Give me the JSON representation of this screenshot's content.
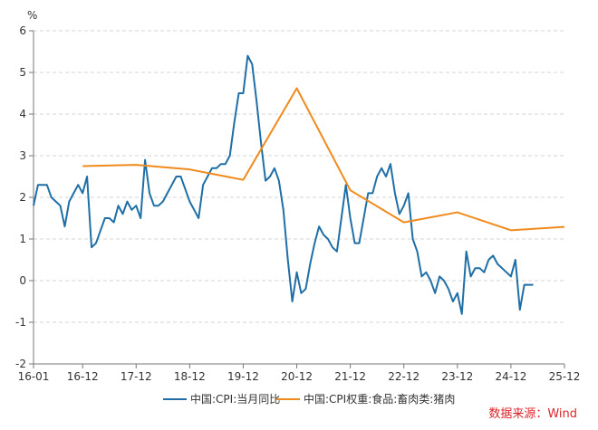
{
  "chart_data": {
    "type": "line",
    "unit": "%",
    "ylim": [
      -2,
      6
    ],
    "yticks": [
      "6",
      "5",
      "4",
      "3",
      "2",
      "1",
      "0",
      "-1",
      "-2"
    ],
    "xlim": [
      "2016-01",
      "2025-12"
    ],
    "xticks": [
      "16-01",
      "16-12",
      "17-12",
      "18-12",
      "19-12",
      "20-12",
      "21-12",
      "22-12",
      "23-12",
      "24-12",
      "25-12"
    ],
    "grid": true,
    "legend_position": "bottom",
    "source": "数据来源：Wind",
    "series": [
      {
        "name": "中国:CPI:当月同比",
        "color": "#1f6fa6",
        "points": [
          [
            "2016-01",
            1.8
          ],
          [
            "2016-02",
            2.3
          ],
          [
            "2016-03",
            2.3
          ],
          [
            "2016-04",
            2.3
          ],
          [
            "2016-05",
            2.0
          ],
          [
            "2016-06",
            1.9
          ],
          [
            "2016-07",
            1.8
          ],
          [
            "2016-08",
            1.3
          ],
          [
            "2016-09",
            1.9
          ],
          [
            "2016-10",
            2.1
          ],
          [
            "2016-11",
            2.3
          ],
          [
            "2016-12",
            2.1
          ],
          [
            "2017-01",
            2.5
          ],
          [
            "2017-02",
            0.8
          ],
          [
            "2017-03",
            0.9
          ],
          [
            "2017-04",
            1.2
          ],
          [
            "2017-05",
            1.5
          ],
          [
            "2017-06",
            1.5
          ],
          [
            "2017-07",
            1.4
          ],
          [
            "2017-08",
            1.8
          ],
          [
            "2017-09",
            1.6
          ],
          [
            "2017-10",
            1.9
          ],
          [
            "2017-11",
            1.7
          ],
          [
            "2017-12",
            1.8
          ],
          [
            "2018-01",
            1.5
          ],
          [
            "2018-02",
            2.9
          ],
          [
            "2018-03",
            2.1
          ],
          [
            "2018-04",
            1.8
          ],
          [
            "2018-05",
            1.8
          ],
          [
            "2018-06",
            1.9
          ],
          [
            "2018-07",
            2.1
          ],
          [
            "2018-08",
            2.3
          ],
          [
            "2018-09",
            2.5
          ],
          [
            "2018-10",
            2.5
          ],
          [
            "2018-11",
            2.2
          ],
          [
            "2018-12",
            1.9
          ],
          [
            "2019-01",
            1.7
          ],
          [
            "2019-02",
            1.5
          ],
          [
            "2019-03",
            2.3
          ],
          [
            "2019-04",
            2.5
          ],
          [
            "2019-05",
            2.7
          ],
          [
            "2019-06",
            2.7
          ],
          [
            "2019-07",
            2.8
          ],
          [
            "2019-08",
            2.8
          ],
          [
            "2019-09",
            3.0
          ],
          [
            "2019-10",
            3.8
          ],
          [
            "2019-11",
            4.5
          ],
          [
            "2019-12",
            4.5
          ],
          [
            "2020-01",
            5.4
          ],
          [
            "2020-02",
            5.2
          ],
          [
            "2020-03",
            4.3
          ],
          [
            "2020-04",
            3.3
          ],
          [
            "2020-05",
            2.4
          ],
          [
            "2020-06",
            2.5
          ],
          [
            "2020-07",
            2.7
          ],
          [
            "2020-08",
            2.4
          ],
          [
            "2020-09",
            1.7
          ],
          [
            "2020-10",
            0.5
          ],
          [
            "2020-11",
            -0.5
          ],
          [
            "2020-12",
            0.2
          ],
          [
            "2021-01",
            -0.3
          ],
          [
            "2021-02",
            -0.2
          ],
          [
            "2021-03",
            0.4
          ],
          [
            "2021-04",
            0.9
          ],
          [
            "2021-05",
            1.3
          ],
          [
            "2021-06",
            1.1
          ],
          [
            "2021-07",
            1.0
          ],
          [
            "2021-08",
            0.8
          ],
          [
            "2021-09",
            0.7
          ],
          [
            "2021-10",
            1.5
          ],
          [
            "2021-11",
            2.3
          ],
          [
            "2021-12",
            1.5
          ],
          [
            "2022-01",
            0.9
          ],
          [
            "2022-02",
            0.9
          ],
          [
            "2022-03",
            1.5
          ],
          [
            "2022-04",
            2.1
          ],
          [
            "2022-05",
            2.1
          ],
          [
            "2022-06",
            2.5
          ],
          [
            "2022-07",
            2.7
          ],
          [
            "2022-08",
            2.5
          ],
          [
            "2022-09",
            2.8
          ],
          [
            "2022-10",
            2.1
          ],
          [
            "2022-11",
            1.6
          ],
          [
            "2022-12",
            1.8
          ],
          [
            "2023-01",
            2.1
          ],
          [
            "2023-02",
            1.0
          ],
          [
            "2023-03",
            0.7
          ],
          [
            "2023-04",
            0.1
          ],
          [
            "2023-05",
            0.2
          ],
          [
            "2023-06",
            0.0
          ],
          [
            "2023-07",
            -0.3
          ],
          [
            "2023-08",
            0.1
          ],
          [
            "2023-09",
            0.0
          ],
          [
            "2023-10",
            -0.2
          ],
          [
            "2023-11",
            -0.5
          ],
          [
            "2023-12",
            -0.3
          ],
          [
            "2024-01",
            -0.8
          ],
          [
            "2024-02",
            0.7
          ],
          [
            "2024-03",
            0.1
          ],
          [
            "2024-04",
            0.3
          ],
          [
            "2024-05",
            0.3
          ],
          [
            "2024-06",
            0.2
          ],
          [
            "2024-07",
            0.5
          ],
          [
            "2024-08",
            0.6
          ],
          [
            "2024-09",
            0.4
          ],
          [
            "2024-10",
            0.3
          ],
          [
            "2024-11",
            0.2
          ],
          [
            "2024-12",
            0.1
          ],
          [
            "2025-01",
            0.5
          ],
          [
            "2025-02",
            -0.7
          ],
          [
            "2025-03",
            -0.1
          ],
          [
            "2025-04",
            -0.1
          ],
          [
            "2025-05",
            -0.1
          ]
        ]
      },
      {
        "name": "中国:CPI权重:食品:畜肉类:猪肉",
        "color": "#f08a1c",
        "points": [
          [
            "2016-12",
            2.75
          ],
          [
            "2017-12",
            2.78
          ],
          [
            "2018-12",
            2.67
          ],
          [
            "2019-12",
            2.42
          ],
          [
            "2020-12",
            4.62
          ],
          [
            "2021-12",
            2.17
          ],
          [
            "2022-12",
            1.4
          ],
          [
            "2023-12",
            1.64
          ],
          [
            "2024-12",
            1.21
          ],
          [
            "2025-12",
            1.29
          ]
        ]
      }
    ]
  }
}
